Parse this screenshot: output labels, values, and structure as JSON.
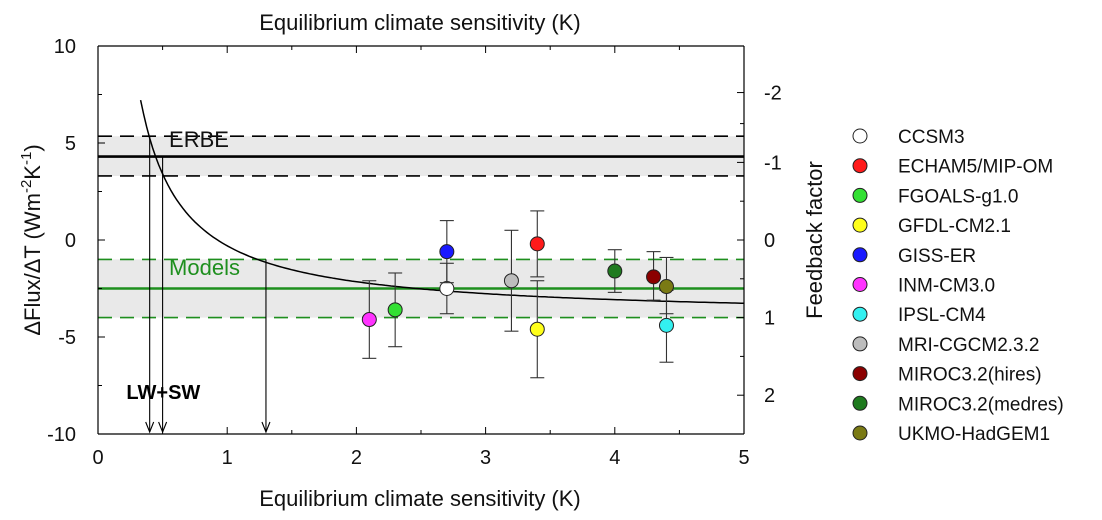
{
  "chart_data": {
    "type": "scatter",
    "title": "Equilibrium climate sensitivity (K)",
    "xlabel": "Equilibrium climate sensitivity (K)",
    "ylabel": "ΔFlux/ΔT (Wm-2K-1)",
    "ylabel_parts": {
      "main": "ΔFlux/ΔT (Wm",
      "exp1": "-2",
      "mid": "K",
      "exp2": "-1",
      "end": ")"
    },
    "y2label": "Feedback factor",
    "xlim": [
      0,
      5
    ],
    "ylim": [
      -10,
      10
    ],
    "xticks": [
      0,
      1,
      2,
      3,
      4,
      5
    ],
    "yticks": [
      -10,
      -5,
      0,
      5,
      10
    ],
    "y2ticks": [
      {
        "label": "-2",
        "y": 7.6
      },
      {
        "label": "-1",
        "y": 4.0
      },
      {
        "label": "0",
        "y": 0.0
      },
      {
        "label": "1",
        "y": -4.0
      },
      {
        "label": "2",
        "y": -8.0
      }
    ],
    "y2_minor": [
      6,
      2,
      -2,
      -6,
      -10
    ],
    "grid": false,
    "legend_position": "right",
    "bands": [
      {
        "name": "ERBE",
        "center": 4.3,
        "low": 3.3,
        "high": 5.35,
        "line_color": "#000000",
        "label_x": 0.55,
        "label_y": 4.8
      },
      {
        "name": "Models",
        "center": -2.5,
        "low": -4.0,
        "high": -1.0,
        "line_color": "#1e8f1e",
        "label_x": 0.55,
        "label_y": -1.8
      }
    ],
    "curve": {
      "type": "inverse",
      "k": -3.3,
      "x_from": 0.33,
      "x_to": 5.0
    },
    "arrows": [
      {
        "x": 0.4,
        "y_from": 5.3
      },
      {
        "x": 0.5,
        "y_from": 4.3
      },
      {
        "x": 1.3,
        "y_from": -1.0
      }
    ],
    "annotation": {
      "text": "LW+SW",
      "x": 0.22,
      "y": -8.0
    },
    "series": [
      {
        "name": "CCSM3",
        "x": 2.7,
        "y": -2.5,
        "yerr_low": -3.8,
        "yerr_high": -1.2,
        "color": "#ffffff"
      },
      {
        "name": "ECHAM5/MIP-OM",
        "x": 3.4,
        "y": -0.2,
        "yerr_low": -1.9,
        "yerr_high": 1.5,
        "color": "#ff1a1a"
      },
      {
        "name": "FGOALS-g1.0",
        "x": 2.3,
        "y": -3.6,
        "yerr_low": -5.5,
        "yerr_high": -1.7,
        "color": "#33e033"
      },
      {
        "name": "GFDL-CM2.1",
        "x": 3.4,
        "y": -4.6,
        "yerr_low": -7.1,
        "yerr_high": -2.1,
        "color": "#ffff1a"
      },
      {
        "name": "GISS-ER",
        "x": 2.7,
        "y": -0.6,
        "yerr_low": -2.2,
        "yerr_high": 1.0,
        "color": "#1a1aff"
      },
      {
        "name": "INM-CM3.0",
        "x": 2.1,
        "y": -4.1,
        "yerr_low": -6.1,
        "yerr_high": -2.1,
        "color": "#ff33ff"
      },
      {
        "name": "IPSL-CM4",
        "x": 4.4,
        "y": -4.4,
        "yerr_low": -6.3,
        "yerr_high": -2.6,
        "color": "#33f0f0"
      },
      {
        "name": "MRI-CGCM2.3.2",
        "x": 3.2,
        "y": -2.1,
        "yerr_low": -4.7,
        "yerr_high": 0.5,
        "color": "#bdbdbd"
      },
      {
        "name": "MIROC3.2(hires)",
        "x": 4.3,
        "y": -1.9,
        "yerr_low": -3.1,
        "yerr_high": -0.6,
        "color": "#8b0000"
      },
      {
        "name": "MIROC3.2(medres)",
        "x": 4.0,
        "y": -1.6,
        "yerr_low": -2.7,
        "yerr_high": -0.5,
        "color": "#1e7a1e"
      },
      {
        "name": "UKMO-HadGEM1",
        "x": 4.4,
        "y": -2.4,
        "yerr_low": -3.8,
        "yerr_high": -0.9,
        "color": "#7a7a14"
      }
    ]
  }
}
